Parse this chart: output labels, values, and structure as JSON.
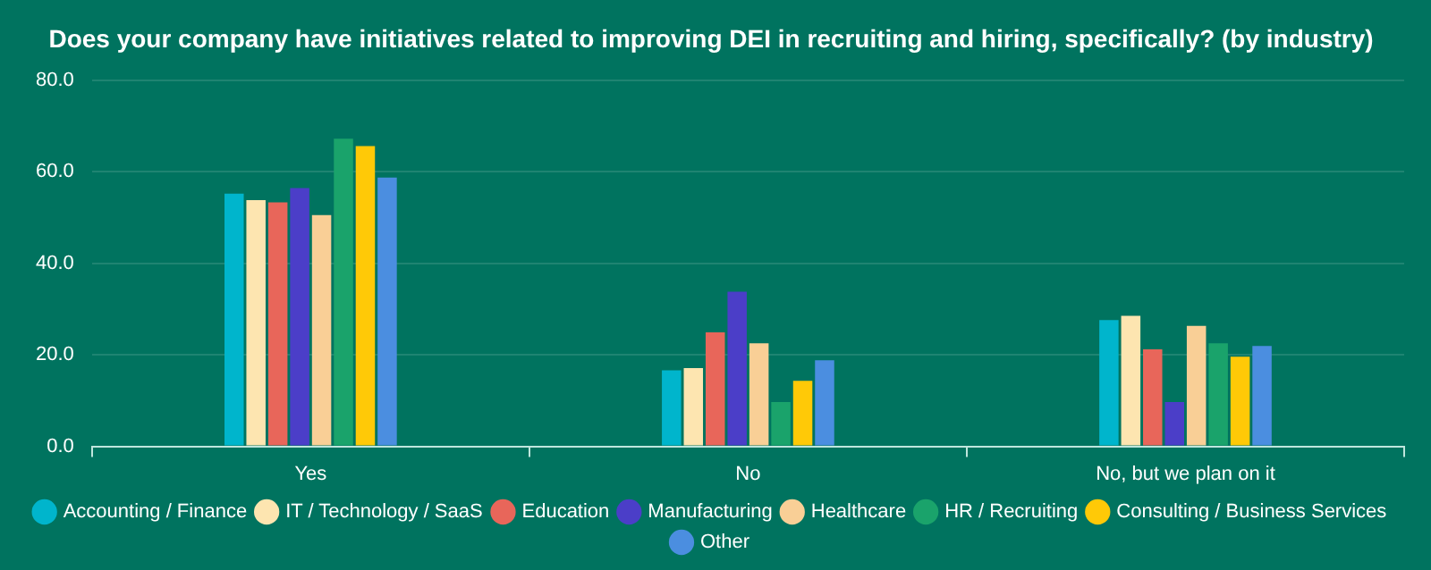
{
  "chart_data": {
    "type": "bar",
    "title": "Does your company have initiatives related to improving DEI in recruiting and hiring, specifically? (by industry)",
    "categories": [
      "Yes",
      "No",
      "No, but we plan on it"
    ],
    "series": [
      {
        "name": "Accounting / Finance",
        "color": "#00b5cc",
        "values": [
          55.2,
          16.6,
          27.6
        ]
      },
      {
        "name": "IT / Technology / SaaS",
        "color": "#fde5b0",
        "values": [
          53.8,
          17.1,
          28.5
        ]
      },
      {
        "name": "Education",
        "color": "#e8665a",
        "values": [
          53.3,
          24.9,
          21.2
        ]
      },
      {
        "name": "Manufacturing",
        "color": "#4b3ec8",
        "values": [
          56.4,
          33.8,
          9.7
        ]
      },
      {
        "name": "Healthcare",
        "color": "#f9cf96",
        "values": [
          50.5,
          22.5,
          26.3
        ]
      },
      {
        "name": "HR / Recruiting",
        "color": "#1aa36b",
        "values": [
          67.2,
          9.7,
          22.5
        ]
      },
      {
        "name": "Consulting / Business Services",
        "color": "#ffc907",
        "values": [
          65.6,
          14.3,
          19.6
        ]
      },
      {
        "name": "Other",
        "color": "#4b8ee0",
        "values": [
          58.7,
          18.8,
          21.9
        ]
      }
    ],
    "ylim": [
      0,
      80
    ],
    "yticks": [
      {
        "value": 0,
        "label": "0.0"
      },
      {
        "value": 20,
        "label": "20.0"
      },
      {
        "value": 40,
        "label": "40.0"
      },
      {
        "value": 60,
        "label": "60.0"
      },
      {
        "value": 80,
        "label": "80.0"
      }
    ],
    "grid": "y",
    "legend": "bottom"
  }
}
